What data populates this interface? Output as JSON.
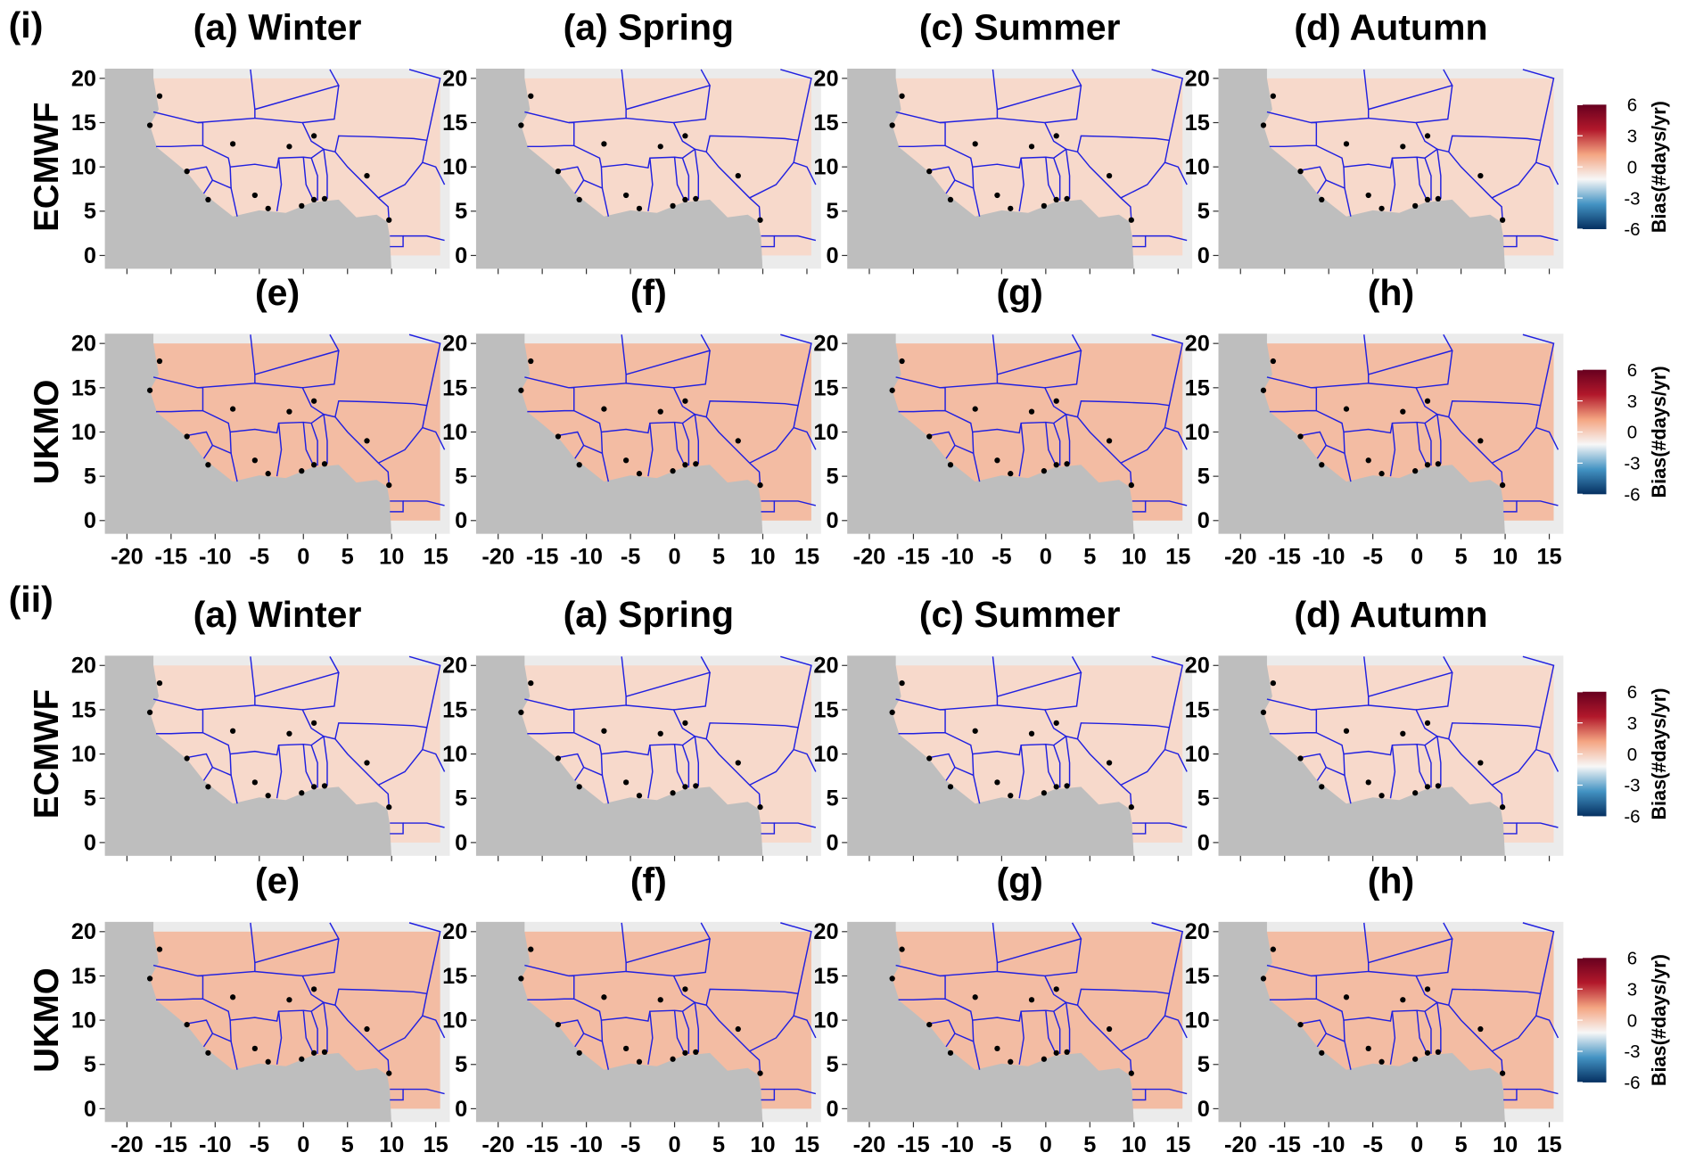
{
  "sections": [
    {
      "label": "(i)",
      "rows": [
        {
          "label": "ECMWF",
          "titles": [
            "(a) Winter",
            "(a) Spring",
            "(c) Summer",
            "(d) Autumn"
          ]
        },
        {
          "label": "UKMO",
          "titles": [
            "(e)",
            "(f)",
            "(g)",
            "(h)"
          ]
        }
      ]
    },
    {
      "label": "(ii)",
      "rows": [
        {
          "label": "ECMWF",
          "titles": [
            "(a) Winter",
            "(a) Spring",
            "(c) Summer",
            "(d) Autumn"
          ]
        },
        {
          "label": "UKMO",
          "titles": [
            "(e)",
            "(f)",
            "(g)",
            "(h)"
          ]
        }
      ]
    }
  ],
  "axes": {
    "xticks": [
      -20,
      -15,
      -10,
      -5,
      0,
      5,
      10,
      15
    ],
    "yticks": [
      0,
      5,
      10,
      15,
      20
    ]
  },
  "colorbar": {
    "label": "Bias(#days/yr)",
    "lim": [
      -6,
      6
    ],
    "ticks": [
      6,
      3,
      0,
      -3,
      -6
    ],
    "colors": [
      "#053061",
      "#4393c3",
      "#f7f7f7",
      "#f4a582",
      "#b2182b",
      "#67001f"
    ]
  }
}
